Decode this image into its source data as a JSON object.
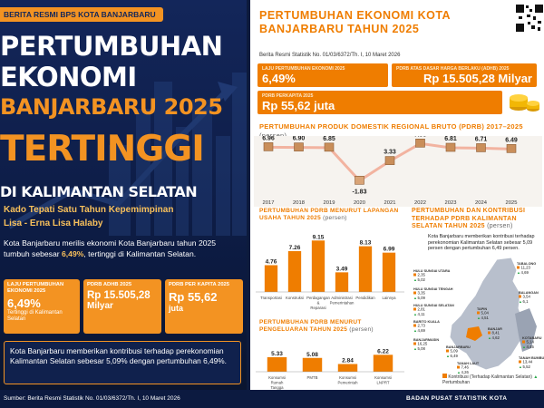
{
  "left": {
    "tagline": "BERITA RESMI BPS KOTA BANJARBARU",
    "headline1": "PERTUMBUHAN",
    "headline2": "EKONOMI",
    "headline3": "BANJARBARU 2025",
    "headline4": "TERTINGGI",
    "headline5": "DI KALIMANTAN SELATAN",
    "sub1": "Kado Tepati Satu Tahun Kepemimpinan",
    "sub2": "Lisa - Erna Lisa Halaby",
    "body_pre": "Kota Banjarbaru merilis ekonomi Kota Banjarbaru tahun 2025 tumbuh sebesar ",
    "body_bold": "6,49%",
    "body_post": ", tertinggi di Kalimantan Selatan.",
    "card1": {
      "label": "LAJU PERTUMBUHAN EKONOMI 2025",
      "value": "6,49%",
      "note": "Tertinggi di Kalimantan Selatan"
    },
    "card2": {
      "label": "PDRB ADHB 2025",
      "value": "Rp 15.505,28",
      "unit": "Milyar"
    },
    "card3": {
      "label": "PDRB PER KAPITA 2025",
      "value": "Rp 55,62",
      "unit": "juta"
    },
    "contribution": "Kota Banjarbaru memberikan kontribusi terhadap perekonomian Kalimantan Selatan sebesar 5,09% dengan pertumbuhan 6,49%."
  },
  "right": {
    "title": "PERTUMBUHAN EKONOMI KOTA BANJARBARU TAHUN 2025",
    "source": "Berita Resmi Statistik No. 01/03/6372/Th. I, 10 Maret 2026",
    "kpi1": {
      "label": "LAJU PERTUMBUHAN EKONOMI 2025",
      "value": "6,49%"
    },
    "kpi2": {
      "label": "PDRB ATAS DASAR HARGA BERLAKU (ADHB) 2025",
      "value": "Rp 15.505,28 Milyar"
    },
    "kpi3": {
      "label": "PDRB PERKAPITA 2025",
      "value": "Rp 55,62 juta"
    },
    "pdrb_title": "PERTUMBUHAN PRODUK DOMESTIK REGIONAL BRUTO (PDRB) 2017–2025",
    "pdrb_unit": "(persen)",
    "lu_title": "PERTUMBUHAN PDRB MENURUT LAPANGAN USAHA TAHUN 2025",
    "lu_unit": "(persen)",
    "peng_title": "PERTUMBUHAN PDRB MENURUT PENGELUARAN TAHUN 2025",
    "peng_unit": "(persen)",
    "map_title": "PERTUMBUHAN DAN KONTRIBUSI TERHADAP PDRB KALIMANTAN SELATAN TAHUN 2025",
    "map_unit": "(persen)",
    "map_desc": "Kota Banjarbaru memberikan kontribusi terhadap perekonomian Kalimantan Selatan sebesar 5,09 persen dengan pertumbuhan 6,49 persen.",
    "map_legend1": "Kontribusi (Terhadap Kalimantan Selatan)",
    "map_legend2": "Pertumbuhan"
  },
  "footer": {
    "left": "Sumber: Berita Resmi Statistik No. 01/03/6372/Th. I, 10 Maret 2026",
    "right": "BADAN PUSAT STATISTIK KOTA BANJARBARU"
  },
  "colors": {
    "accent": "#ef7d00",
    "navy": "#0c1a40",
    "highlight": "#f8c05b"
  },
  "chart_data": [
    {
      "type": "line",
      "title": "PERTUMBUHAN PRODUK DOMESTIK REGIONAL BRUTO (PDRB) 2017–2025",
      "ylabel": "(persen)",
      "x": [
        "2017",
        "2018",
        "2019",
        "2020",
        "2021",
        "2022",
        "2023",
        "2024",
        "2025"
      ],
      "values": [
        6.96,
        6.9,
        6.85,
        -1.83,
        3.33,
        7.93,
        6.81,
        6.71,
        6.49
      ],
      "labels": [
        "6.96",
        "6.90",
        "6.85",
        "-1.83",
        "3.33",
        "7.93",
        "6.81",
        "6.71",
        "6.49"
      ]
    },
    {
      "type": "bar",
      "title": "PERTUMBUHAN PDRB MENURUT LAPANGAN USAHA TAHUN 2025",
      "ylabel": "(persen)",
      "categories": [
        "Transportasi",
        "Konstruksi",
        "Perdagangan & Reparasi",
        "Administrasi Pemerintahan",
        "Pendidikan",
        "Lainnya"
      ],
      "values": [
        4.76,
        7.26,
        9.15,
        3.49,
        8.13,
        6.99
      ],
      "labels": [
        "4.76",
        "7.26",
        "9.15",
        "3.49",
        "8.13",
        "6.99"
      ]
    },
    {
      "type": "bar",
      "title": "PERTUMBUHAN PDRB MENURUT PENGELUARAN TAHUN 2025",
      "ylabel": "(persen)",
      "categories": [
        "Konsumsi Rumah Tangga",
        "PMTB",
        "Konsumsi Pemerintah",
        "Konsumsi LNPRT"
      ],
      "values": [
        5.33,
        5.08,
        2.84,
        6.22
      ],
      "labels": [
        "5.33",
        "5.08",
        "2.84",
        "6.22"
      ]
    },
    {
      "type": "table",
      "title": "PERTUMBUHAN DAN KONTRIBUSI TERHADAP PDRB KALIMANTAN SELATAN TAHUN 2025",
      "rows": [
        {
          "region": "TABALONG",
          "kontribusi": "11,23",
          "pertumbuhan": "4,69"
        },
        {
          "region": "BALANGAN",
          "kontribusi": "3,54",
          "pertumbuhan": "6,1"
        },
        {
          "region": "HULU SUNGAI UTARA",
          "kontribusi": "2,35",
          "pertumbuhan": "5,02"
        },
        {
          "region": "HULU SUNGAI TENGAH",
          "kontribusi": "3,35",
          "pertumbuhan": "5,09"
        },
        {
          "region": "HULU SUNGAI SELATAN",
          "kontribusi": "2,81",
          "pertumbuhan": "4,11"
        },
        {
          "region": "BARITO KUALA",
          "kontribusi": "2,73",
          "pertumbuhan": "4,69"
        },
        {
          "region": "TAPIN",
          "kontribusi": "5,04",
          "pertumbuhan": "4,51"
        },
        {
          "region": "BANJARMASIN",
          "kontribusi": "16,25",
          "pertumbuhan": "5,08"
        },
        {
          "region": "BANJAR",
          "kontribusi": "8,41",
          "pertumbuhan": "4,62"
        },
        {
          "region": "BANJARBARU",
          "kontribusi": "5,09",
          "pertumbuhan": "6,49"
        },
        {
          "region": "TANAH LAUT",
          "kontribusi": "7,46",
          "pertumbuhan": "4,26"
        },
        {
          "region": "TANAH BUMBU",
          "kontribusi": "13,44",
          "pertumbuhan": "5,52"
        },
        {
          "region": "KOTABARU",
          "kontribusi": "5,14",
          "pertumbuhan": "4,45"
        }
      ]
    }
  ]
}
